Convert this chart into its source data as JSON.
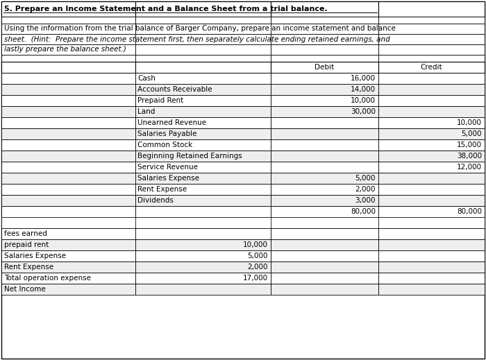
{
  "title": "5. Prepare an Income Statement and a Balance Sheet from a trial balance.",
  "desc1": "Using the information from the trial balance of Barger Company, prepare an income statement and balance",
  "desc2": "sheet.  (Hint:  Prepare the income statement first, then separately calculate ending retained earnings, and",
  "desc3": "lastly prepare the balance sheet.)",
  "trial_balance_rows": [
    {
      "account": "Cash",
      "debit": "16,000",
      "credit": ""
    },
    {
      "account": "Accounts Receivable",
      "debit": "14,000",
      "credit": ""
    },
    {
      "account": "Prepaid Rent",
      "debit": "10,000",
      "credit": ""
    },
    {
      "account": "Land",
      "debit": "30,000",
      "credit": ""
    },
    {
      "account": "Unearned Revenue",
      "debit": "",
      "credit": "10,000"
    },
    {
      "account": "Salaries Payable",
      "debit": "",
      "credit": "5,000"
    },
    {
      "account": "Common Stock",
      "debit": "",
      "credit": "15,000"
    },
    {
      "account": "Beginning Retained Earnings",
      "debit": "",
      "credit": "38,000"
    },
    {
      "account": "Service Revenue",
      "debit": "",
      "credit": "12,000"
    },
    {
      "account": "Salaries Expense",
      "debit": "5,000",
      "credit": ""
    },
    {
      "account": "Rent Expense",
      "debit": "2,000",
      "credit": ""
    },
    {
      "account": "Dividends",
      "debit": "3,000",
      "credit": ""
    },
    {
      "account": "",
      "debit": "80,000",
      "credit": "80,000"
    }
  ],
  "income_rows": [
    {
      "label": "fees earned",
      "val": ""
    },
    {
      "label": "prepaid rent",
      "val": "10,000"
    },
    {
      "label": "Salaries Expense",
      "val": "5,000"
    },
    {
      "label": "Rent Expense",
      "val": "2,000"
    },
    {
      "label": "Total operation expense",
      "val": "17,000"
    },
    {
      "label": "Net Income",
      "val": ""
    }
  ],
  "bg_color": "#ffffff",
  "font_size": 7.5,
  "title_font_size": 8.0
}
